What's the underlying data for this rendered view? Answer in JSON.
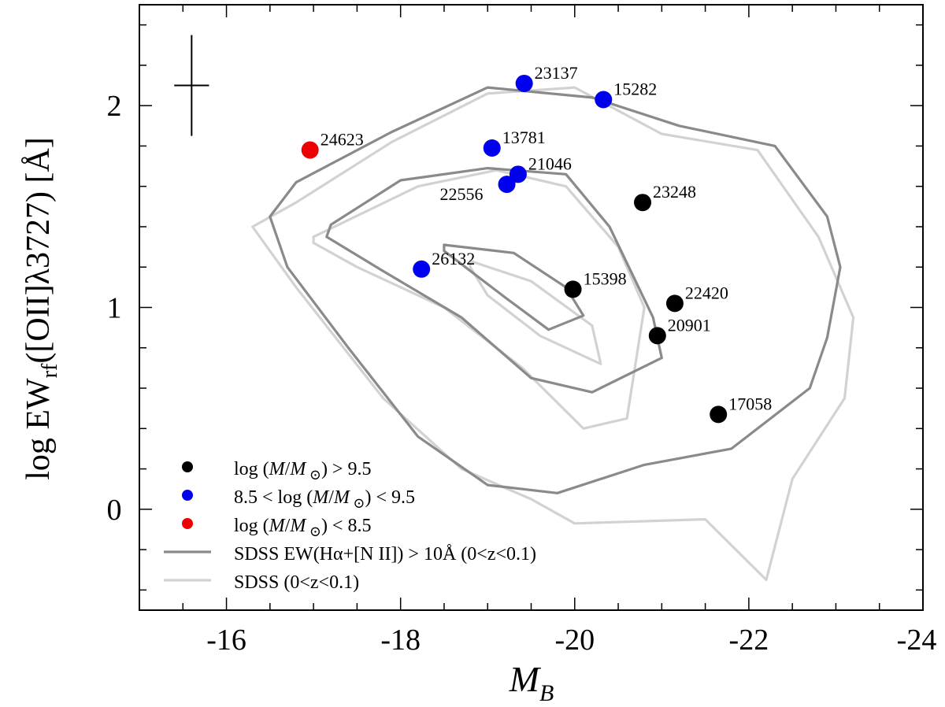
{
  "chart_data": {
    "type": "scatter",
    "title": "",
    "xlabel": {
      "main": "M",
      "sub": "B"
    },
    "ylabel": {
      "prefix": "log EW",
      "sub": "rf",
      "suffix": "([OII]λ3727) [Å]"
    },
    "xlim": [
      -15,
      -24
    ],
    "ylim": [
      -0.5,
      2.5
    ],
    "x_ticks": [
      -16,
      -18,
      -20,
      -22,
      -24
    ],
    "y_ticks": [
      0,
      1,
      2
    ],
    "error_bar": {
      "x": -15.6,
      "y": 2.1,
      "xerr": 0.2,
      "yerr": 0.25
    },
    "series": [
      {
        "name": "log (M/M⊙) > 9.5",
        "color": "#000000",
        "points": [
          {
            "id": "23248",
            "x": -20.78,
            "y": 1.52
          },
          {
            "id": "15398",
            "x": -19.98,
            "y": 1.09
          },
          {
            "id": "22420",
            "x": -21.15,
            "y": 1.02
          },
          {
            "id": "20901",
            "x": -20.95,
            "y": 0.86
          },
          {
            "id": "17058",
            "x": -21.65,
            "y": 0.47
          }
        ]
      },
      {
        "name": "8.5 < log (M/M⊙) < 9.5",
        "color": "#0000ee",
        "points": [
          {
            "id": "23137",
            "x": -19.42,
            "y": 2.11
          },
          {
            "id": "15282",
            "x": -20.33,
            "y": 2.03
          },
          {
            "id": "13781",
            "x": -19.05,
            "y": 1.79
          },
          {
            "id": "21046",
            "x": -19.35,
            "y": 1.66
          },
          {
            "id": "22556",
            "x": -19.22,
            "y": 1.61
          },
          {
            "id": "26132",
            "x": -18.24,
            "y": 1.19
          }
        ]
      },
      {
        "name": "log (M/M⊙) < 8.5",
        "color": "#ee0000",
        "points": [
          {
            "id": "24623",
            "x": -16.96,
            "y": 1.78
          }
        ]
      }
    ],
    "contours": [
      {
        "name": "SDSS EW(Hα+[N II]) > 10Å (0<z<0.1)",
        "color": "#8a8a8a",
        "levels": [
          [
            [
              -16.8,
              1.62
            ],
            [
              -17.9,
              1.87
            ],
            [
              -19.0,
              2.09
            ],
            [
              -20.2,
              2.04
            ],
            [
              -21.2,
              1.9
            ],
            [
              -22.3,
              1.8
            ],
            [
              -22.9,
              1.45
            ],
            [
              -23.05,
              1.2
            ],
            [
              -22.9,
              0.85
            ],
            [
              -22.7,
              0.6
            ],
            [
              -21.8,
              0.3
            ],
            [
              -20.8,
              0.22
            ],
            [
              -19.8,
              0.08
            ],
            [
              -19.0,
              0.12
            ],
            [
              -18.2,
              0.36
            ],
            [
              -17.4,
              0.8
            ],
            [
              -16.7,
              1.2
            ],
            [
              -16.5,
              1.45
            ]
          ],
          [
            [
              -17.2,
              1.41
            ],
            [
              -18.0,
              1.63
            ],
            [
              -19.0,
              1.69
            ],
            [
              -19.9,
              1.66
            ],
            [
              -20.4,
              1.4
            ],
            [
              -20.9,
              0.95
            ],
            [
              -21.0,
              0.75
            ],
            [
              -20.2,
              0.58
            ],
            [
              -19.5,
              0.65
            ],
            [
              -18.7,
              0.95
            ],
            [
              -17.8,
              1.18
            ],
            [
              -17.15,
              1.35
            ]
          ],
          [
            [
              -18.5,
              1.31
            ],
            [
              -19.3,
              1.27
            ],
            [
              -19.9,
              1.1
            ],
            [
              -20.1,
              0.96
            ],
            [
              -19.7,
              0.89
            ],
            [
              -19.2,
              1.05
            ],
            [
              -18.5,
              1.28
            ]
          ]
        ]
      },
      {
        "name": "SDSS (0<z<0.1)",
        "color": "#d2d2d2",
        "levels": [
          [
            [
              -16.8,
              1.52
            ],
            [
              -17.9,
              1.82
            ],
            [
              -19.0,
              2.06
            ],
            [
              -20.0,
              2.09
            ],
            [
              -21.0,
              1.86
            ],
            [
              -22.1,
              1.78
            ],
            [
              -22.8,
              1.35
            ],
            [
              -23.2,
              0.95
            ],
            [
              -23.1,
              0.55
            ],
            [
              -22.5,
              0.15
            ],
            [
              -22.2,
              -0.35
            ],
            [
              -21.5,
              -0.05
            ],
            [
              -20.0,
              -0.07
            ],
            [
              -19.5,
              0.05
            ],
            [
              -18.7,
              0.2
            ],
            [
              -17.8,
              0.55
            ],
            [
              -16.8,
              1.1
            ],
            [
              -16.3,
              1.4
            ]
          ],
          [
            [
              -17.0,
              1.35
            ],
            [
              -18.2,
              1.6
            ],
            [
              -19.1,
              1.68
            ],
            [
              -19.9,
              1.6
            ],
            [
              -20.5,
              1.3
            ],
            [
              -20.8,
              1.0
            ],
            [
              -20.6,
              0.45
            ],
            [
              -20.1,
              0.4
            ],
            [
              -19.4,
              0.7
            ],
            [
              -18.5,
              1.0
            ],
            [
              -17.5,
              1.2
            ],
            [
              -17.0,
              1.32
            ]
          ],
          [
            [
              -18.8,
              1.23
            ],
            [
              -19.5,
              1.13
            ],
            [
              -20.2,
              0.91
            ],
            [
              -20.3,
              0.72
            ],
            [
              -19.6,
              0.86
            ],
            [
              -19.0,
              1.06
            ],
            [
              -18.8,
              1.2
            ]
          ]
        ]
      }
    ],
    "legend": {
      "placement": "bottom-left",
      "entries": [
        {
          "kind": "marker",
          "color": "#000000",
          "label": "log (M/M⊙) > 9.5"
        },
        {
          "kind": "marker",
          "color": "#0000ee",
          "label": "8.5 < log (M/M⊙) < 9.5"
        },
        {
          "kind": "marker",
          "color": "#ee0000",
          "label": "log (M/M⊙) < 8.5"
        },
        {
          "kind": "line",
          "color": "#8a8a8a",
          "label": "SDSS EW(Hα+[N II]) > 10Å (0<z<0.1)"
        },
        {
          "kind": "line",
          "color": "#d2d2d2",
          "label": "SDSS (0<z<0.1)"
        }
      ]
    }
  }
}
